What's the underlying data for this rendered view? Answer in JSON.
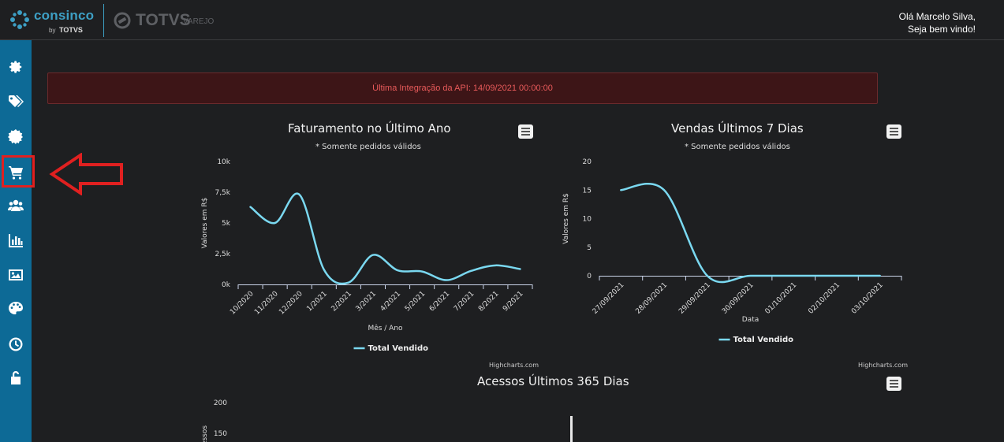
{
  "header": {
    "brand": "consinco",
    "brand_by": "by",
    "brand_by_company": "TOTVS",
    "partner_logo_text": "TOTVS",
    "partner_logo_sub": "VAREJO",
    "greeting_line1": "Olá Marcelo Silva,",
    "greeting_line2": "Seja bem vindo!"
  },
  "sidebar": {
    "items": [
      {
        "icon": "gear-icon"
      },
      {
        "icon": "tags-icon"
      },
      {
        "icon": "badge-gear-icon"
      },
      {
        "icon": "shopping-cart-icon",
        "highlighted": true
      },
      {
        "icon": "users-icon"
      },
      {
        "icon": "bar-chart-icon"
      },
      {
        "icon": "image-icon"
      },
      {
        "icon": "palette-icon"
      },
      {
        "icon": "clock-icon"
      },
      {
        "icon": "unlock-icon"
      }
    ]
  },
  "alert": {
    "text": "Última Integração da API: 14/09/2021 00:00:00",
    "color": "#e85a5a"
  },
  "chart_data": [
    {
      "type": "line",
      "title": "Faturamento no Último Ano",
      "subtitle": "* Somente pedidos válidos",
      "xlabel": "Mês / Ano",
      "ylabel": "Valores em R$",
      "categories": [
        "10/2020",
        "11/2020",
        "12/2020",
        "1/2021",
        "2/2021",
        "3/2021",
        "4/2021",
        "5/2021",
        "6/2021",
        "7/2021",
        "8/2021",
        "9/2021"
      ],
      "y_ticks": [
        "0k",
        "2,5k",
        "5k",
        "7,5k",
        "10k"
      ],
      "ylim": [
        0,
        10000
      ],
      "series": [
        {
          "name": "Total Vendido",
          "values": [
            6300,
            5000,
            7300,
            1200,
            150,
            2400,
            1150,
            1050,
            350,
            1100,
            1550,
            1250
          ],
          "color": "#7ad8f0"
        }
      ],
      "legend": "bottom",
      "credits": "Highcharts.com"
    },
    {
      "type": "line",
      "title": "Vendas Últimos 7 Dias",
      "subtitle": "* Somente pedidos válidos",
      "xlabel": "Data",
      "ylabel": "Valores em R$",
      "categories": [
        "27/09/2021",
        "28/09/2021",
        "29/09/2021",
        "30/09/2021",
        "01/10/2021",
        "02/10/2021",
        "03/10/2021"
      ],
      "y_ticks": [
        "0",
        "5",
        "10",
        "15",
        "20"
      ],
      "ylim": [
        0,
        20
      ],
      "series": [
        {
          "name": "Total Vendido",
          "values": [
            15,
            15,
            0,
            0,
            0,
            0,
            0
          ],
          "color": "#7ad8f0"
        }
      ],
      "legend": "bottom",
      "credits": "Highcharts.com"
    },
    {
      "type": "bar",
      "title": "Acessos Últimos 365 Dias",
      "ylabel": "Acessos",
      "y_ticks": [
        "150",
        "200"
      ]
    }
  ]
}
